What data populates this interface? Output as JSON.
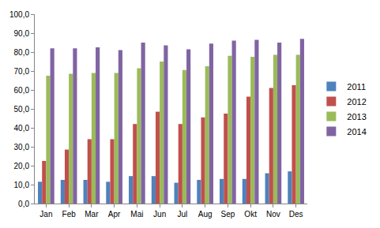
{
  "chart_data": {
    "type": "bar",
    "categories": [
      "Jan",
      "Feb",
      "Mar",
      "Apr",
      "Mai",
      "Jun",
      "Jul",
      "Aug",
      "Sep",
      "Okt",
      "Nov",
      "Des"
    ],
    "series": [
      {
        "name": "2011",
        "color": "#4f81bd",
        "values": [
          11.5,
          12.5,
          12.5,
          11.5,
          14.5,
          14.5,
          11,
          12.5,
          13,
          13,
          16,
          17
        ]
      },
      {
        "name": "2012",
        "color": "#c0504d",
        "values": [
          22.5,
          28.5,
          34,
          34,
          42,
          48.5,
          42,
          45.5,
          47.5,
          56.5,
          61,
          62.5
        ]
      },
      {
        "name": "2013",
        "color": "#9bbb59",
        "values": [
          67.5,
          68.5,
          69,
          69,
          71.5,
          75,
          70.5,
          72.5,
          78,
          77.5,
          78.5,
          78.5
        ]
      },
      {
        "name": "2014",
        "color": "#8064a2",
        "values": [
          82,
          82,
          82.5,
          81,
          85,
          83.5,
          81.5,
          84.5,
          86,
          86.5,
          85,
          87
        ]
      }
    ],
    "ylim": [
      0,
      100
    ],
    "yticks": [
      {
        "value": 0,
        "label": "0,0"
      },
      {
        "value": 10,
        "label": "10,0"
      },
      {
        "value": 20,
        "label": "20,0"
      },
      {
        "value": 30,
        "label": "30,0"
      },
      {
        "value": 40,
        "label": "40,0"
      },
      {
        "value": 50,
        "label": "50,0"
      },
      {
        "value": 60,
        "label": "60,0"
      },
      {
        "value": 70,
        "label": "70,0"
      },
      {
        "value": 80,
        "label": "80,0"
      },
      {
        "value": 90,
        "label": "90,0"
      },
      {
        "value": 100,
        "label": "100,0"
      }
    ],
    "grid": false,
    "legend": "right"
  }
}
